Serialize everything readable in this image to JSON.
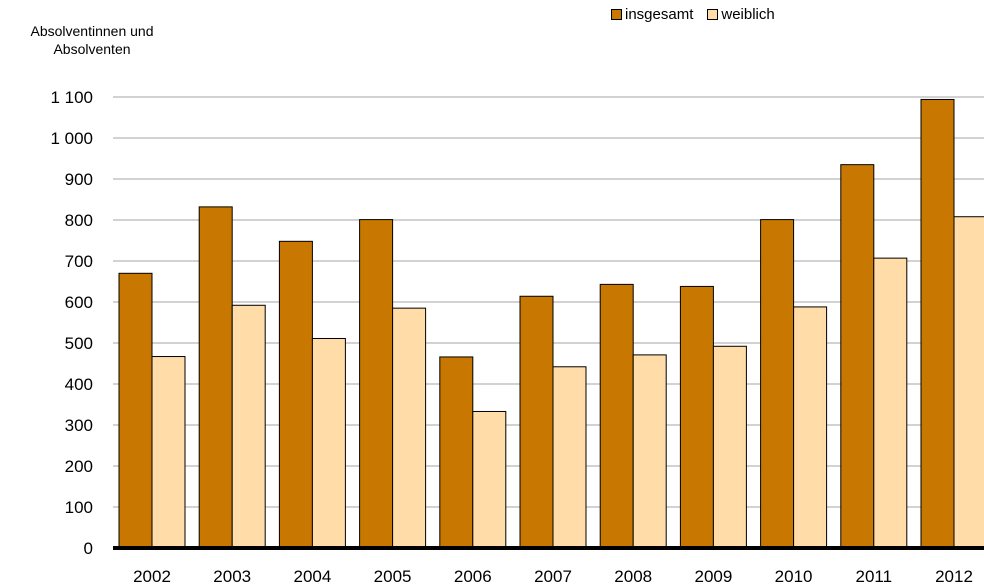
{
  "chart_data": {
    "type": "bar",
    "title": "",
    "ylabel_lines": [
      "Absolventinnen und",
      "Absolventen"
    ],
    "xlabel": "",
    "categories": [
      "2002",
      "2003",
      "2004",
      "2005",
      "2006",
      "2007",
      "2008",
      "2009",
      "2010",
      "2011",
      "2012"
    ],
    "series": [
      {
        "name": "insgesamt",
        "color": "#C87800",
        "values": [
          670,
          832,
          748,
          801,
          466,
          614,
          643,
          638,
          801,
          935,
          1094
        ]
      },
      {
        "name": "weiblich",
        "color": "#FFDCA8",
        "values": [
          467,
          592,
          511,
          585,
          333,
          442,
          471,
          492,
          588,
          707,
          808
        ]
      }
    ],
    "ylim": [
      0,
      1100
    ],
    "yticks": [
      0,
      100,
      200,
      300,
      400,
      500,
      600,
      700,
      800,
      900,
      1000,
      1100
    ],
    "ytick_labels": [
      "0",
      "100",
      "200",
      "300",
      "400",
      "500",
      "600",
      "700",
      "800",
      "900",
      "1 000",
      "1 100"
    ],
    "grid": true,
    "legend_position": "top-right"
  }
}
